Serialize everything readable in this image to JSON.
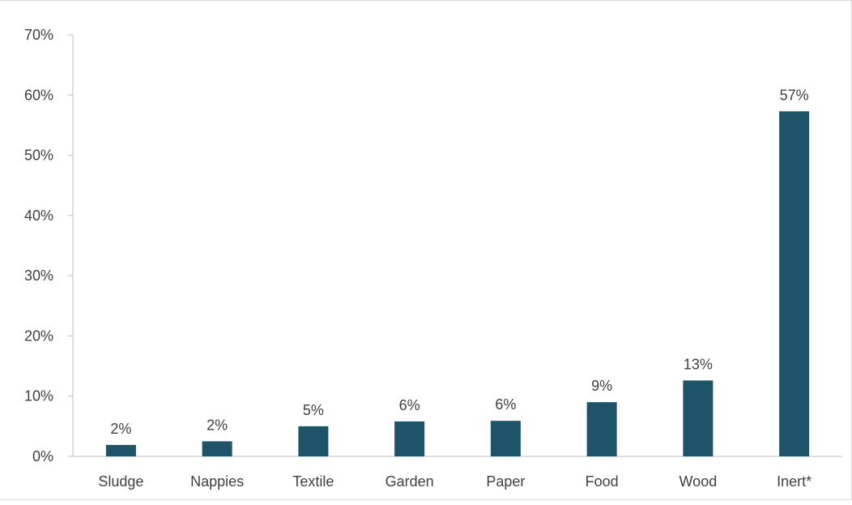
{
  "chart_data": {
    "type": "bar",
    "title": "",
    "xlabel": "",
    "ylabel": "",
    "categories": [
      "Sludge",
      "Nappies",
      "Textile",
      "Garden",
      "Paper",
      "Food",
      "Wood",
      "Inert*"
    ],
    "values": [
      1.9,
      2.5,
      5.0,
      5.8,
      5.9,
      9.0,
      12.6,
      57.3
    ],
    "data_labels": [
      "2%",
      "2%",
      "5%",
      "6%",
      "6%",
      "9%",
      "13%",
      "57%"
    ],
    "ylim": [
      0,
      70
    ],
    "yticks": [
      0,
      10,
      20,
      30,
      40,
      50,
      60,
      70
    ],
    "ytick_labels": [
      "0%",
      "10%",
      "20%",
      "30%",
      "40%",
      "50%",
      "60%",
      "70%"
    ],
    "grid": false,
    "legend": "none",
    "bar_color": "#1f5468",
    "axis_color": "#bfbfbf",
    "text_color": "#404040"
  }
}
